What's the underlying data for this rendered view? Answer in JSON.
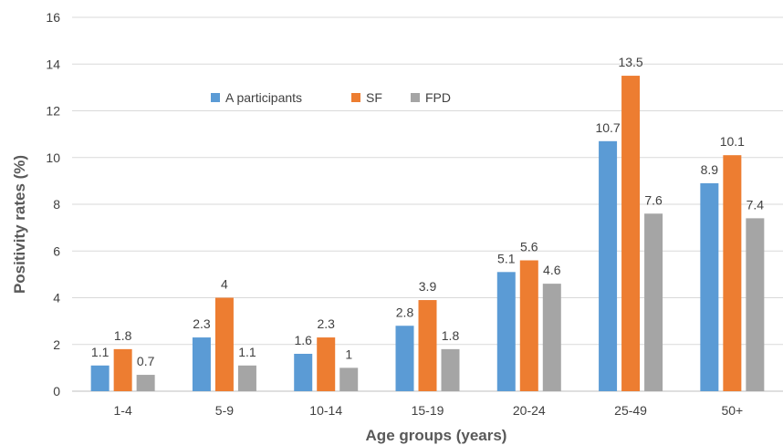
{
  "chart_data": {
    "type": "bar",
    "categories": [
      "1-4",
      "5-9",
      "10-14",
      "15-19",
      "20-24",
      "25-49",
      "50+"
    ],
    "series": [
      {
        "name": "A participants",
        "color": "#5B9BD5",
        "values": [
          1.1,
          2.3,
          1.6,
          2.8,
          5.1,
          10.7,
          8.9
        ]
      },
      {
        "name": "SF",
        "color": "#ED7D31",
        "values": [
          1.8,
          4,
          2.3,
          3.9,
          5.6,
          13.5,
          10.1
        ]
      },
      {
        "name": "FPD",
        "color": "#A5A5A5",
        "values": [
          0.7,
          1.1,
          1,
          1.8,
          4.6,
          7.6,
          7.4
        ]
      }
    ],
    "xlabel": "Age groups (years)",
    "ylabel": "Positivity rates (%)",
    "ylim": [
      0,
      16
    ],
    "ytick_step": 2,
    "grid": true,
    "legend_position": "top-center",
    "data_labels": true
  }
}
